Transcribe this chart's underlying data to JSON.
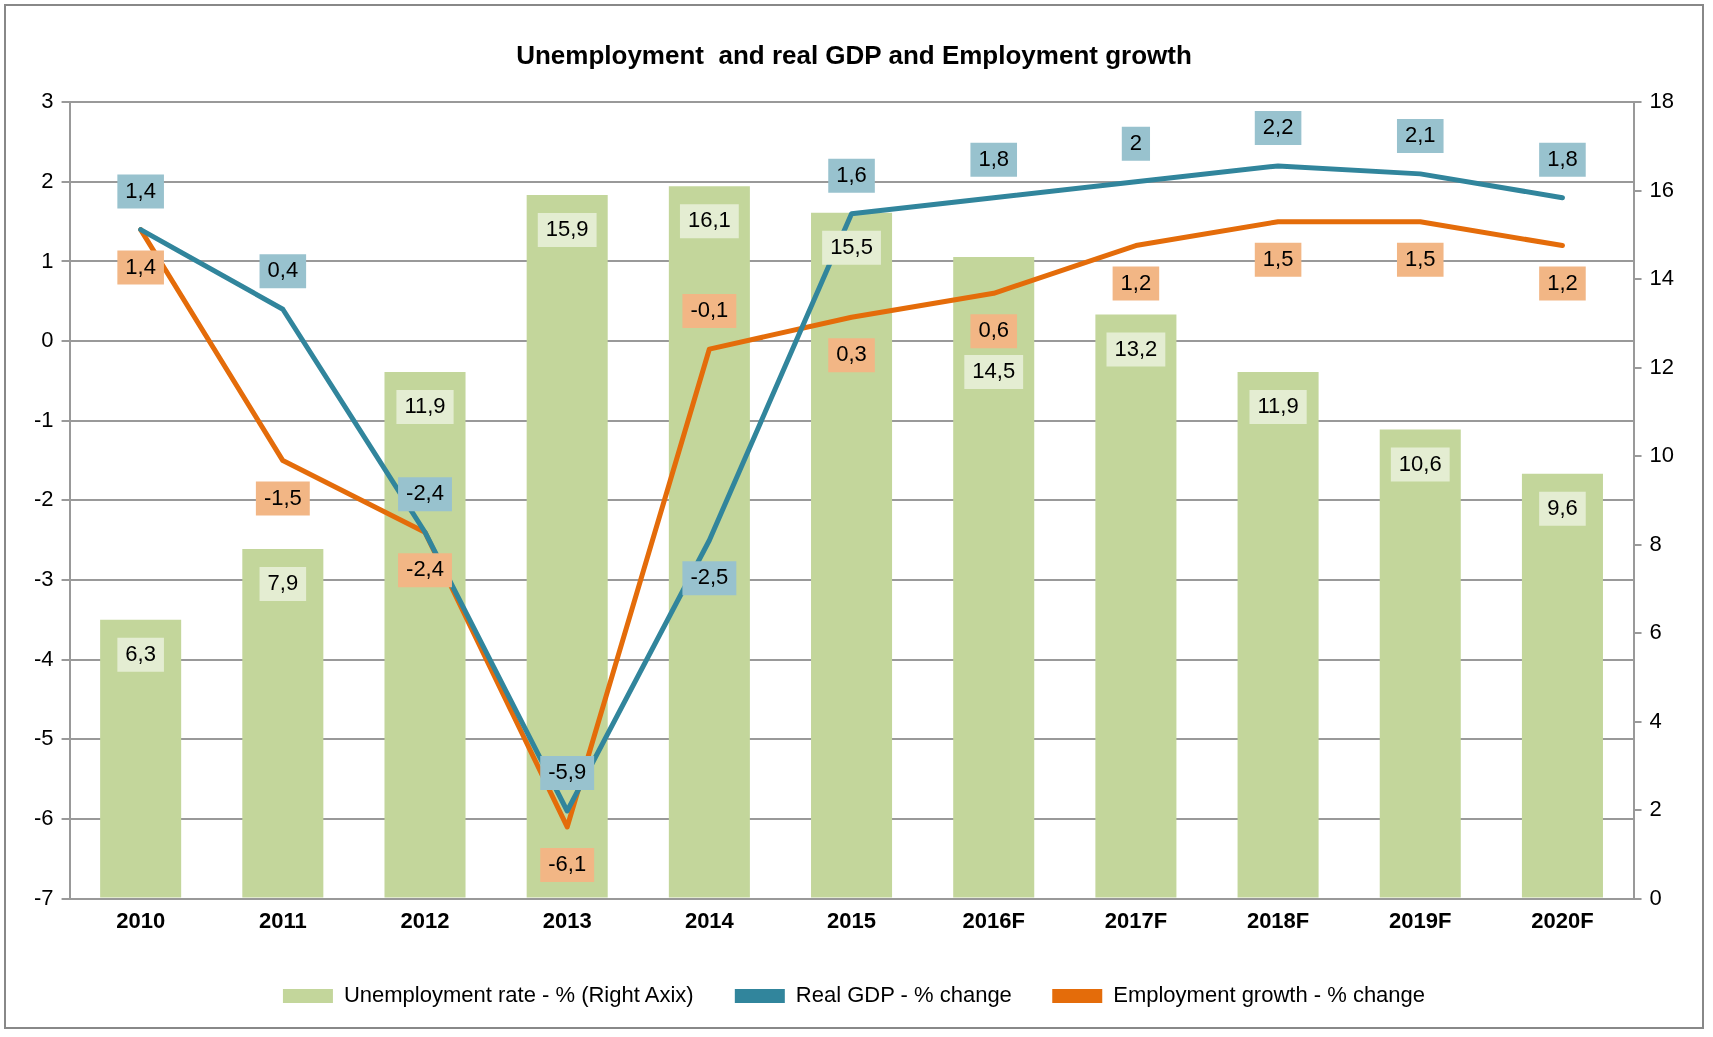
{
  "chart_data": {
    "type": "bar",
    "title": "Unemployment  and real GDP and Employment growth",
    "categories": [
      "2010",
      "2011",
      "2012",
      "2013",
      "2014",
      "2015",
      "2016F",
      "2017F",
      "2018F",
      "2019F",
      "2020F"
    ],
    "series": [
      {
        "name": "Unemployment rate - % (Right Axix)",
        "axis": "y2",
        "color": "#c3d69b",
        "values": [
          6.3,
          7.9,
          11.9,
          15.9,
          16.1,
          15.5,
          14.5,
          13.2,
          11.9,
          10.6,
          9.6
        ],
        "value_labels": [
          "6,3",
          "7,9",
          "11,9",
          "15,9",
          "16,1",
          "15,5",
          "14,5",
          "13,2",
          "11,9",
          "10,6",
          "9,6"
        ]
      },
      {
        "name": "Real GDP - % change",
        "type": "line",
        "color": "#31859c",
        "values": [
          1.4,
          0.4,
          -2.4,
          -5.9,
          -2.5,
          1.6,
          1.8,
          2,
          2.2,
          2.1,
          1.8
        ],
        "value_labels": [
          "1,4",
          "0,4",
          "-2,4",
          "-5,9",
          "-2,5",
          "1,6",
          "1,8",
          "2",
          "2,2",
          "2,1",
          "1,8"
        ]
      },
      {
        "name": "Employment growth - % change",
        "type": "line",
        "color": "#e46c0a",
        "values": [
          1.4,
          -1.5,
          -2.4,
          -6.1,
          -0.1,
          0.3,
          0.6,
          1.2,
          1.5,
          1.5,
          1.2
        ],
        "value_labels": [
          "1,4",
          "-1,5",
          "-2,4",
          "-6,1",
          "-0,1",
          "0,3",
          "0,6",
          "1,2",
          "1,5",
          "1,5",
          "1,2"
        ]
      }
    ],
    "ylim": [
      -7,
      3
    ],
    "yticks": [
      -7,
      -6,
      -5,
      -4,
      -3,
      -2,
      -1,
      0,
      1,
      2,
      3
    ],
    "y2lim": [
      0,
      18
    ],
    "y2ticks": [
      0,
      2,
      4,
      6,
      8,
      10,
      12,
      14,
      16,
      18
    ],
    "grid": "y",
    "legend": "bottom",
    "marker": "none",
    "line_style": "solid"
  }
}
